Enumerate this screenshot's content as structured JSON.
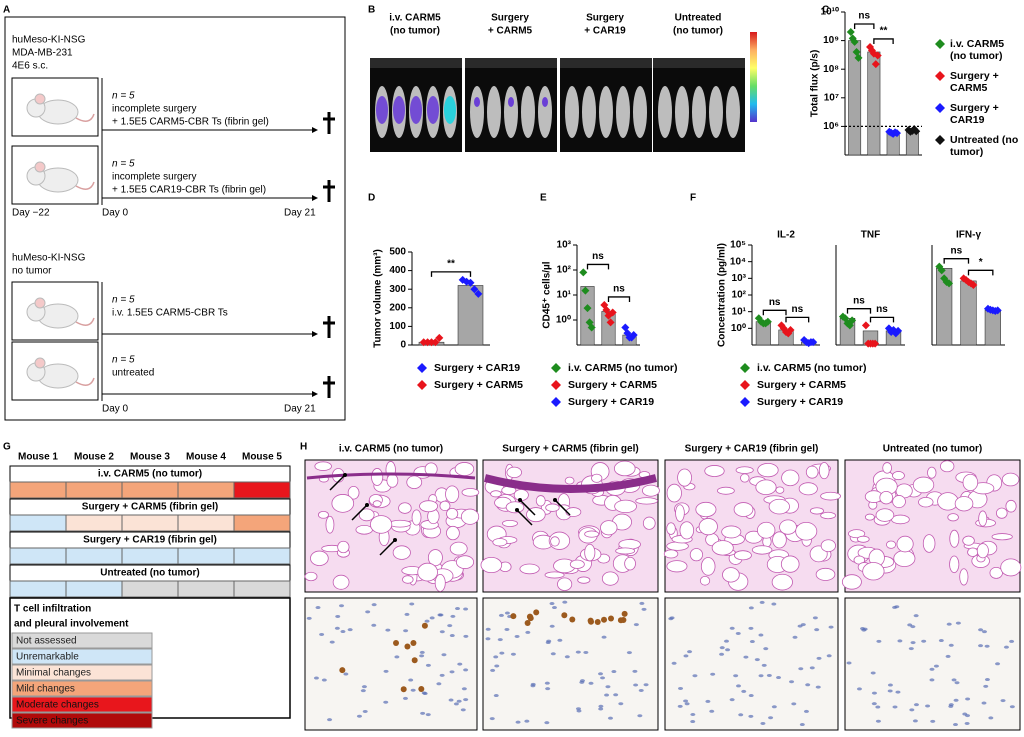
{
  "panel_labels": [
    "A",
    "B",
    "C",
    "D",
    "E",
    "F",
    "G",
    "H"
  ],
  "panel_a": {
    "groups": [
      {
        "header": [
          "huMeso-KI-NSG",
          "MDA-MB-231",
          "4E6 s.c."
        ],
        "arms": [
          {
            "n": "n = 5",
            "lines": [
              "incomplete surgery",
              "+ 1.5E5 CARM5-CBR Ts (fibrin gel)"
            ]
          },
          {
            "n": "n = 5",
            "lines": [
              "incomplete surgery",
              "+ 1.5E5 CAR19-CBR Ts (fibrin gel)"
            ]
          }
        ],
        "days": [
          "Day −22",
          "Day 0",
          "Day 21"
        ]
      },
      {
        "header": [
          "huMeso-KI-NSG",
          "no tumor"
        ],
        "arms": [
          {
            "n": "n = 5",
            "lines": [
              "i.v. 1.5E5 CARM5-CBR Ts"
            ]
          },
          {
            "n": "n = 5",
            "lines": [
              "untreated"
            ]
          }
        ],
        "days": [
          "Day 0",
          "Day 21"
        ]
      }
    ]
  },
  "panel_b": {
    "titles": [
      [
        "i.v. CARM5",
        "(no tumor)"
      ],
      [
        "Surgery",
        "+ CARM5"
      ],
      [
        "Surgery",
        "+ CAR19"
      ],
      [
        "Untreated",
        "(no tumor)"
      ]
    ]
  },
  "chart_data": [
    {
      "type": "bar",
      "ylabel": "Total flux (p/s)",
      "log": true,
      "ylim": [
        100000,
        10000000000
      ],
      "yticks": [
        {
          "value": 1000000,
          "label": "10⁶"
        },
        {
          "value": 10000000,
          "label": "10⁷"
        },
        {
          "value": 100000000,
          "label": "10⁸"
        },
        {
          "value": 1000000000,
          "label": "10⁹"
        },
        {
          "value": 10000000000,
          "label": "10¹⁰"
        }
      ],
      "bar_color": "#a6a6a6",
      "legend": "right",
      "threshold": 1000000,
      "series": [
        {
          "name": "i.v. CARM5 (no tumor)",
          "color": "#1e8c1e",
          "values": [
            1000000000
          ],
          "points": [
            2000000000,
            1200000000,
            900000000,
            400000000,
            250000000
          ]
        },
        {
          "name": "Surgery + CARM5",
          "color": "#e8141c",
          "values": [
            400000000
          ],
          "points": [
            600000000,
            450000000,
            350000000,
            150000000,
            300000000
          ]
        },
        {
          "name": "Surgery + CAR19",
          "color": "#1a1aff",
          "values": [
            600000
          ],
          "points": [
            650000,
            600000,
            550000,
            620000,
            580000
          ]
        },
        {
          "name": "Untreated (no tumor)",
          "color": "#111111",
          "values": [
            700000
          ],
          "points": [
            750000,
            650000,
            700000,
            800000,
            680000
          ]
        }
      ],
      "comparisons": [
        "ns",
        "**",
        null
      ]
    },
    {
      "type": "bar",
      "ylabel": "Tumor volume (mm³)",
      "log": false,
      "ylim": [
        0,
        500
      ],
      "yticks": [
        0,
        100,
        200,
        300,
        400,
        500
      ],
      "bar_color": "#a6a6a6",
      "legend": "below",
      "legend_reversed": true,
      "series": [
        {
          "name": "Surgery + CARM5",
          "color": "#e8141c",
          "values": [
            15
          ],
          "points": [
            15,
            15,
            15,
            15,
            38
          ]
        },
        {
          "name": "Surgery + CAR19",
          "color": "#1a1aff",
          "values": [
            320
          ],
          "points": [
            350,
            340,
            335,
            300,
            275
          ]
        }
      ],
      "comparisons": [
        "**"
      ]
    },
    {
      "type": "bar",
      "ylabel": "CD45⁺ cells/µl",
      "log": true,
      "ylim": [
        0.1,
        1000
      ],
      "yticks": [
        {
          "value": 1,
          "label": "10⁰"
        },
        {
          "value": 10,
          "label": "10¹"
        },
        {
          "value": 100,
          "label": "10²"
        },
        {
          "value": 1000,
          "label": "10³"
        }
      ],
      "bar_color": "#a6a6a6",
      "legend": "below",
      "series": [
        {
          "name": "i.v. CARM5 (no tumor)",
          "color": "#1e8c1e",
          "values": [
            22
          ],
          "points": [
            80,
            15,
            3,
            0.8,
            0.5
          ]
        },
        {
          "name": "Surgery + CARM5",
          "color": "#e8141c",
          "values": [
            2.2
          ],
          "points": [
            4,
            2.5,
            1.5,
            0.8,
            2
          ]
        },
        {
          "name": "Surgery + CAR19",
          "color": "#1a1aff",
          "values": [
            0.25
          ],
          "points": [
            0.5,
            0.3,
            0.2,
            0.2,
            0.25
          ]
        }
      ],
      "comparisons": [
        "ns",
        "ns"
      ]
    },
    {
      "type": "bar",
      "title": "IL-2",
      "ylabel": "Concentration (pg/ml)",
      "log": true,
      "ylim": [
        0.1,
        100000
      ],
      "yticks": [
        {
          "value": 1,
          "label": "10⁰"
        },
        {
          "value": 10,
          "label": "10¹"
        },
        {
          "value": 100,
          "label": "10²"
        },
        {
          "value": 1000,
          "label": "10³"
        },
        {
          "value": 10000,
          "label": "10⁴"
        },
        {
          "value": 100000,
          "label": "10⁵"
        }
      ],
      "bar_color": "#a6a6a6",
      "legend": "below",
      "series": [
        {
          "name": "i.v. CARM5 (no tumor)",
          "color": "#1e8c1e",
          "values": [
            2.5
          ],
          "points": [
            4,
            2.5,
            2,
            2,
            2.5
          ]
        },
        {
          "name": "Surgery + CARM5",
          "color": "#e8141c",
          "values": [
            0.8
          ],
          "points": [
            1.5,
            1,
            0.6,
            0.5,
            0.8
          ]
        },
        {
          "name": "Surgery + CAR19",
          "color": "#1a1aff",
          "values": [
            0.15
          ],
          "points": [
            0.2,
            0.15,
            0.13,
            0.15,
            0.15
          ]
        }
      ],
      "comparisons": [
        "ns",
        "ns"
      ]
    },
    {
      "type": "bar",
      "title": "TNF",
      "log": true,
      "ylim": [
        0.1,
        100000
      ],
      "bar_color": "#a6a6a6",
      "series": [
        {
          "color": "#1e8c1e",
          "values": [
            4
          ],
          "points": [
            5,
            4,
            2,
            1.5,
            3
          ]
        },
        {
          "color": "#e8141c",
          "values": [
            0.7
          ],
          "points": [
            1.5,
            0.12,
            0.12,
            0.12,
            0.12
          ]
        },
        {
          "color": "#1a1aff",
          "values": [
            0.7
          ],
          "points": [
            1,
            0.6,
            0.8,
            0.5,
            0.7
          ]
        }
      ],
      "comparisons": [
        "ns",
        "ns"
      ]
    },
    {
      "type": "bar",
      "title": "IFN-γ",
      "log": true,
      "ylim": [
        0.1,
        100000
      ],
      "bar_color": "#a6a6a6",
      "series": [
        {
          "color": "#1e8c1e",
          "values": [
            4000
          ],
          "points": [
            5000,
            3000,
            1000,
            600,
            500
          ]
        },
        {
          "color": "#e8141c",
          "values": [
            700
          ],
          "points": [
            1000,
            800,
            600,
            500,
            400
          ]
        },
        {
          "color": "#1a1aff",
          "values": [
            12
          ],
          "points": [
            15,
            13,
            12,
            11,
            12
          ]
        }
      ],
      "comparisons": [
        "ns",
        "*"
      ]
    }
  ],
  "panel_g": {
    "columns": [
      "Mouse 1",
      "Mouse 2",
      "Mouse 3",
      "Mouse 4",
      "Mouse 5"
    ],
    "groups": [
      {
        "name": "i.v. CARM5 (no tumor)",
        "cells": [
          "#f4a57a",
          "#f4a57a",
          "#f4a57a",
          "#f4a57a",
          "#e8161c"
        ]
      },
      {
        "name": "Surgery + CARM5 (fibrin gel)",
        "cells": [
          "#cfe6f7",
          "#fbe3d6",
          "#fbe3d6",
          "#fbe3d6",
          "#f4a57a"
        ]
      },
      {
        "name": "Surgery + CAR19 (fibrin gel)",
        "cells": [
          "#cfe6f7",
          "#cfe6f7",
          "#cfe6f7",
          "#cfe6f7",
          "#cfe6f7"
        ]
      },
      {
        "name": "Untreated (no tumor)",
        "cells": [
          "#cfe6f7",
          "#cfe6f7",
          "#d9d9d9",
          "#d9d9d9",
          "#d9d9d9"
        ]
      }
    ],
    "legend": {
      "title": [
        "T cell infiltration",
        "and pleural involvement"
      ],
      "levels": [
        {
          "label": "Not assessed",
          "color": "#d9d9d9"
        },
        {
          "label": "Unremarkable",
          "color": "#cfe6f7"
        },
        {
          "label": "Minimal changes",
          "color": "#fbe3d6"
        },
        {
          "label": "Mild changes",
          "color": "#f4a57a"
        },
        {
          "label": "Moderate changes",
          "color": "#e8161c"
        },
        {
          "label": "Severe changes",
          "color": "#b00a0a"
        }
      ]
    }
  },
  "panel_h": {
    "titles": [
      "i.v. CARM5 (no tumor)",
      "Surgery + CARM5 (fibrin gel)",
      "Surgery + CAR19 (fibrin gel)",
      "Untreated (no tumor)"
    ]
  }
}
